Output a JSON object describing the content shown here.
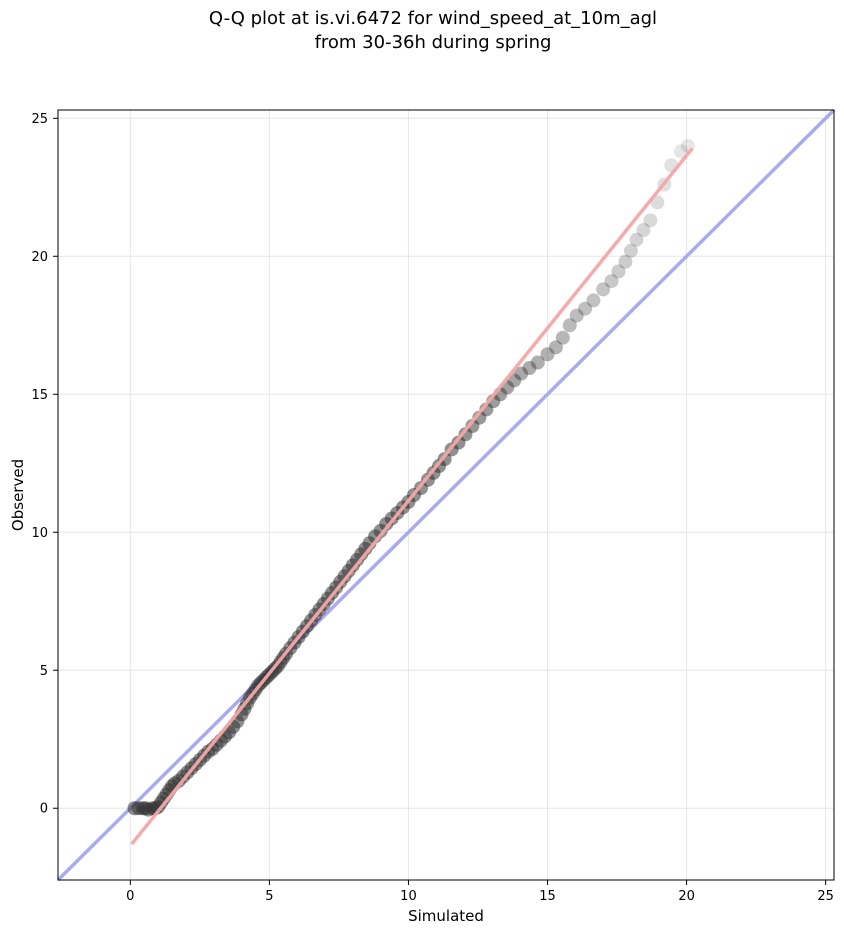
{
  "chart_data": {
    "type": "scatter",
    "title": "Q-Q plot at is.vi.6472 for wind_speed_at_10m_agl",
    "subtitle": "from 30-36h during spring",
    "xlabel": "Simulated",
    "ylabel": "Observed",
    "xlim": [
      -2.6,
      25.3
    ],
    "ylim": [
      -2.6,
      25.3
    ],
    "xticks": [
      "0",
      "5",
      "10",
      "15",
      "20",
      "25"
    ],
    "yticks": [
      "0",
      "5",
      "10",
      "15",
      "20",
      "25"
    ],
    "grid": true,
    "legend": "none",
    "reference_line": {
      "from": [
        -2.6,
        -2.6
      ],
      "to": [
        25.3,
        25.3
      ],
      "color": "#aaaaee"
    },
    "fit_line": {
      "from": [
        0.05,
        -1.3
      ],
      "to": [
        20.2,
        23.9
      ],
      "color": "#f4a6a6"
    },
    "points_color": "#333333",
    "points": [
      [
        0.15,
        0.0
      ],
      [
        0.3,
        0.0
      ],
      [
        0.45,
        0.0
      ],
      [
        0.55,
        0.0
      ],
      [
        0.65,
        -0.05
      ],
      [
        0.8,
        0.0
      ],
      [
        0.9,
        0.0
      ],
      [
        1.0,
        0.05
      ],
      [
        1.1,
        0.2
      ],
      [
        1.2,
        0.35
      ],
      [
        1.3,
        0.5
      ],
      [
        1.4,
        0.65
      ],
      [
        1.5,
        0.8
      ],
      [
        1.6,
        0.9
      ],
      [
        1.75,
        1.0
      ],
      [
        1.9,
        1.15
      ],
      [
        2.05,
        1.3
      ],
      [
        2.2,
        1.45
      ],
      [
        2.35,
        1.6
      ],
      [
        2.5,
        1.75
      ],
      [
        2.65,
        1.9
      ],
      [
        2.8,
        2.05
      ],
      [
        2.95,
        2.15
      ],
      [
        3.1,
        2.3
      ],
      [
        3.25,
        2.45
      ],
      [
        3.4,
        2.6
      ],
      [
        3.55,
        2.75
      ],
      [
        3.7,
        2.95
      ],
      [
        3.85,
        3.15
      ],
      [
        4.0,
        3.4
      ],
      [
        4.1,
        3.6
      ],
      [
        4.2,
        3.8
      ],
      [
        4.3,
        4.0
      ],
      [
        4.4,
        4.15
      ],
      [
        4.5,
        4.3
      ],
      [
        4.6,
        4.45
      ],
      [
        4.7,
        4.55
      ],
      [
        4.8,
        4.65
      ],
      [
        4.9,
        4.75
      ],
      [
        5.0,
        4.85
      ],
      [
        5.1,
        4.95
      ],
      [
        5.2,
        5.05
      ],
      [
        5.3,
        5.15
      ],
      [
        5.4,
        5.3
      ],
      [
        5.5,
        5.45
      ],
      [
        5.6,
        5.6
      ],
      [
        5.75,
        5.8
      ],
      [
        5.9,
        6.0
      ],
      [
        6.05,
        6.2
      ],
      [
        6.2,
        6.4
      ],
      [
        6.35,
        6.6
      ],
      [
        6.5,
        6.8
      ],
      [
        6.65,
        7.0
      ],
      [
        6.8,
        7.2
      ],
      [
        6.95,
        7.4
      ],
      [
        7.1,
        7.6
      ],
      [
        7.25,
        7.8
      ],
      [
        7.4,
        8.0
      ],
      [
        7.55,
        8.2
      ],
      [
        7.7,
        8.4
      ],
      [
        7.85,
        8.6
      ],
      [
        8.0,
        8.8
      ],
      [
        8.15,
        9.0
      ],
      [
        8.3,
        9.2
      ],
      [
        8.45,
        9.4
      ],
      [
        8.6,
        9.6
      ],
      [
        8.8,
        9.85
      ],
      [
        9.0,
        10.05
      ],
      [
        9.2,
        10.3
      ],
      [
        9.4,
        10.5
      ],
      [
        9.6,
        10.7
      ],
      [
        9.8,
        10.9
      ],
      [
        10.0,
        11.1
      ],
      [
        10.2,
        11.35
      ],
      [
        10.45,
        11.6
      ],
      [
        10.7,
        11.9
      ],
      [
        10.9,
        12.15
      ],
      [
        11.1,
        12.4
      ],
      [
        11.3,
        12.65
      ],
      [
        11.55,
        13.0
      ],
      [
        11.8,
        13.25
      ],
      [
        12.05,
        13.55
      ],
      [
        12.3,
        13.85
      ],
      [
        12.55,
        14.15
      ],
      [
        12.8,
        14.45
      ],
      [
        13.05,
        14.75
      ],
      [
        13.3,
        15.0
      ],
      [
        13.55,
        15.25
      ],
      [
        13.8,
        15.5
      ],
      [
        14.05,
        15.75
      ],
      [
        14.35,
        15.95
      ],
      [
        14.65,
        16.15
      ],
      [
        15.0,
        16.45
      ],
      [
        15.3,
        16.7
      ],
      [
        15.55,
        17.05
      ],
      [
        15.8,
        17.5
      ],
      [
        16.05,
        17.85
      ],
      [
        16.35,
        18.1
      ],
      [
        16.65,
        18.4
      ],
      [
        17.0,
        18.8
      ],
      [
        17.3,
        19.1
      ],
      [
        17.55,
        19.45
      ],
      [
        17.8,
        19.8
      ],
      [
        18.0,
        20.2
      ],
      [
        18.2,
        20.6
      ],
      [
        18.45,
        20.95
      ],
      [
        18.7,
        21.3
      ],
      [
        18.95,
        21.95
      ],
      [
        19.2,
        22.6
      ],
      [
        19.45,
        23.3
      ],
      [
        19.8,
        23.8
      ],
      [
        20.05,
        24.0
      ]
    ]
  }
}
